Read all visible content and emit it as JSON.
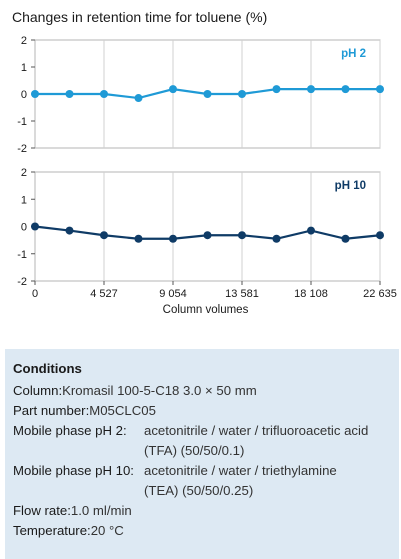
{
  "chart_data": {
    "type": "line",
    "title": "Changes in retention time for toluene (%)",
    "xlabel": "Column volumes",
    "x_ticks": [
      "0",
      "4 527",
      "9 054",
      "13 581",
      "18 108",
      "22 635"
    ],
    "x_tick_values": [
      0,
      4527,
      9054,
      13581,
      18108,
      22635
    ],
    "xlim": [
      0,
      22635
    ],
    "ylim": [
      -2,
      2
    ],
    "y_ticks": [
      "2",
      "1",
      "0",
      "-1",
      "-2"
    ],
    "y_tick_values": [
      2,
      1,
      0,
      -1,
      -2
    ],
    "grid": true,
    "panels": [
      {
        "label": "pH 2",
        "color": "#1f9ad6",
        "x": [
          0,
          2263,
          4527,
          6790,
          9054,
          11317,
          13581,
          15844,
          18108,
          20371,
          22635
        ],
        "y": [
          0.0,
          0.0,
          0.0,
          -0.15,
          0.18,
          0.0,
          0.0,
          0.18,
          0.18,
          0.18,
          0.18
        ]
      },
      {
        "label": "pH 10",
        "color": "#0f3b66",
        "x": [
          0,
          2263,
          4527,
          6790,
          9054,
          11317,
          13581,
          15844,
          18108,
          20371,
          22635
        ],
        "y": [
          0.0,
          -0.15,
          -0.32,
          -0.45,
          -0.45,
          -0.32,
          -0.32,
          -0.45,
          -0.15,
          -0.45,
          -0.32
        ]
      }
    ]
  },
  "conditions": {
    "title": "Conditions",
    "column_label": "Column: ",
    "column_value": "Kromasil 100-5-C18 3.0 × 50 mm",
    "part_label": "Part number: ",
    "part_value": "M05CLC05",
    "mp2_label": "Mobile phase pH 2:",
    "mp2_line1": "acetonitrile / water / trifluoroacetic acid",
    "mp2_line2": "(TFA) (50/50/0.1)",
    "mp10_label": "Mobile phase pH 10:",
    "mp10_line1": "acetonitrile / water / triethylamine",
    "mp10_line2": "(TEA) (50/50/0.25)",
    "flow_label": "Flow rate: ",
    "flow_value": "1.0 ml/min",
    "temp_label": "Temperature: ",
    "temp_value": "20 °C"
  }
}
